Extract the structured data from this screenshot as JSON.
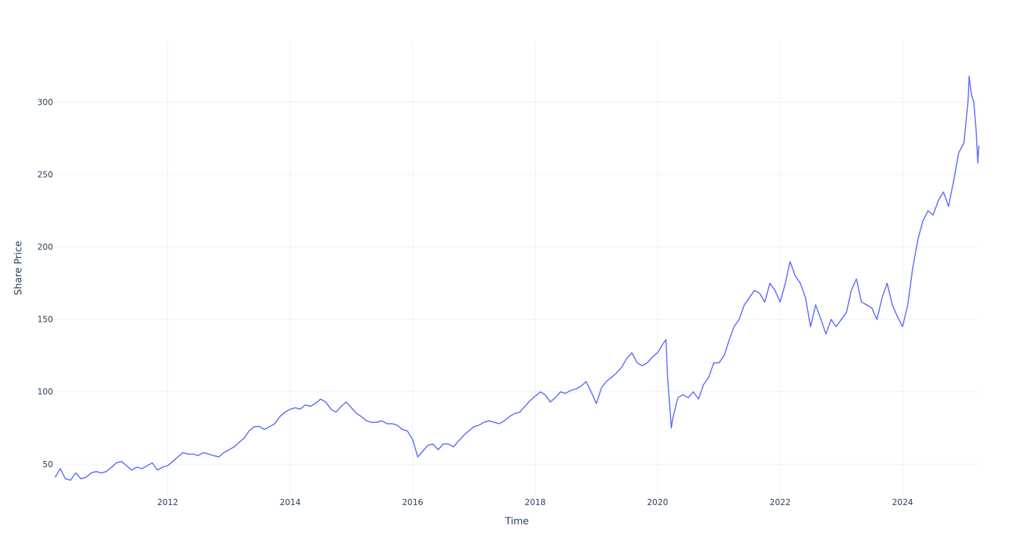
{
  "chart_data": {
    "type": "line",
    "title": "",
    "xlabel": "Time",
    "ylabel": "Share Price",
    "x_range": [
      "2010-03-01",
      "2025-03-31"
    ],
    "ylim": [
      28,
      342
    ],
    "x_ticks": [
      "2012",
      "2014",
      "2016",
      "2018",
      "2020",
      "2022",
      "2024"
    ],
    "y_ticks": [
      50,
      100,
      150,
      200,
      250,
      300
    ],
    "grid": true,
    "legend": "none",
    "colors": {
      "line": "#636efa",
      "grid": "#ebf0f8",
      "text": "#2a3f5f"
    },
    "series": [
      {
        "x": [
          "2010-03-01",
          "2010-04-01",
          "2010-05-01",
          "2010-06-01",
          "2010-07-01",
          "2010-08-01",
          "2010-09-01",
          "2010-10-01",
          "2010-11-01",
          "2010-12-01",
          "2011-01-01",
          "2011-02-01",
          "2011-03-01",
          "2011-04-01",
          "2011-05-01",
          "2011-06-01",
          "2011-07-01",
          "2011-08-01",
          "2011-09-01",
          "2011-10-01",
          "2011-11-01",
          "2011-12-01",
          "2012-01-01",
          "2012-02-01",
          "2012-03-01",
          "2012-04-01",
          "2012-05-01",
          "2012-06-01",
          "2012-07-01",
          "2012-08-01",
          "2012-09-01",
          "2012-10-01",
          "2012-11-01",
          "2012-12-01",
          "2013-01-01",
          "2013-02-01",
          "2013-03-01",
          "2013-04-01",
          "2013-05-01",
          "2013-06-01",
          "2013-07-01",
          "2013-08-01",
          "2013-09-01",
          "2013-10-01",
          "2013-11-01",
          "2013-12-01",
          "2014-01-01",
          "2014-02-01",
          "2014-03-01",
          "2014-04-01",
          "2014-05-01",
          "2014-06-01",
          "2014-07-01",
          "2014-08-01",
          "2014-09-01",
          "2014-10-01",
          "2014-11-01",
          "2014-12-01",
          "2015-01-01",
          "2015-02-01",
          "2015-03-01",
          "2015-04-01",
          "2015-05-01",
          "2015-06-01",
          "2015-07-01",
          "2015-08-01",
          "2015-09-01",
          "2015-10-01",
          "2015-11-01",
          "2015-12-01",
          "2016-01-01",
          "2016-02-01",
          "2016-03-01",
          "2016-04-01",
          "2016-05-01",
          "2016-06-01",
          "2016-07-01",
          "2016-08-01",
          "2016-09-01",
          "2016-10-01",
          "2016-11-01",
          "2016-12-01",
          "2017-01-01",
          "2017-02-01",
          "2017-03-01",
          "2017-04-01",
          "2017-05-01",
          "2017-06-01",
          "2017-07-01",
          "2017-08-01",
          "2017-09-01",
          "2017-10-01",
          "2017-11-01",
          "2017-12-01",
          "2018-01-01",
          "2018-02-01",
          "2018-03-01",
          "2018-04-01",
          "2018-05-01",
          "2018-06-01",
          "2018-07-01",
          "2018-08-01",
          "2018-09-01",
          "2018-10-01",
          "2018-11-01",
          "2018-12-01",
          "2019-01-01",
          "2019-02-01",
          "2019-03-01",
          "2019-04-01",
          "2019-05-01",
          "2019-06-01",
          "2019-07-01",
          "2019-08-01",
          "2019-09-01",
          "2019-10-01",
          "2019-11-01",
          "2019-12-01",
          "2020-01-01",
          "2020-02-01",
          "2020-02-20",
          "2020-03-01",
          "2020-03-23",
          "2020-04-01",
          "2020-05-01",
          "2020-06-01",
          "2020-07-01",
          "2020-08-01",
          "2020-09-01",
          "2020-10-01",
          "2020-11-01",
          "2020-12-01",
          "2021-01-01",
          "2021-02-01",
          "2021-03-01",
          "2021-04-01",
          "2021-05-01",
          "2021-06-01",
          "2021-07-01",
          "2021-08-01",
          "2021-09-01",
          "2021-10-01",
          "2021-11-01",
          "2021-12-01",
          "2022-01-01",
          "2022-02-01",
          "2022-03-01",
          "2022-04-01",
          "2022-05-01",
          "2022-06-01",
          "2022-07-01",
          "2022-08-01",
          "2022-09-01",
          "2022-10-01",
          "2022-11-01",
          "2022-12-01",
          "2023-01-01",
          "2023-02-01",
          "2023-03-01",
          "2023-04-01",
          "2023-05-01",
          "2023-06-01",
          "2023-07-01",
          "2023-08-01",
          "2023-09-01",
          "2023-10-01",
          "2023-11-01",
          "2023-12-01",
          "2024-01-01",
          "2024-02-01",
          "2024-03-01",
          "2024-04-01",
          "2024-05-01",
          "2024-06-01",
          "2024-07-01",
          "2024-08-01",
          "2024-09-01",
          "2024-10-01",
          "2024-11-01",
          "2024-12-01",
          "2025-01-01",
          "2025-01-25",
          "2025-02-01",
          "2025-02-15",
          "2025-03-01",
          "2025-03-15",
          "2025-03-25",
          "2025-03-31"
        ],
        "y": [
          41,
          47,
          40,
          39,
          44,
          40,
          41,
          44,
          45,
          44,
          45,
          48,
          51,
          52,
          49,
          46,
          48,
          47,
          49,
          51,
          46,
          48,
          49,
          52,
          55,
          58,
          57,
          57,
          56,
          58,
          57,
          56,
          55,
          58,
          60,
          62,
          65,
          68,
          73,
          76,
          76,
          74,
          76,
          78,
          83,
          86,
          88,
          89,
          88,
          91,
          90,
          92,
          95,
          93,
          88,
          86,
          90,
          93,
          89,
          85,
          83,
          80,
          79,
          79,
          80,
          78,
          78,
          77,
          74,
          73,
          67,
          55,
          59,
          63,
          64,
          60,
          64,
          64,
          62,
          66,
          70,
          73,
          76,
          77,
          79,
          80,
          79,
          78,
          80,
          83,
          85,
          86,
          90,
          94,
          97,
          100,
          98,
          93,
          96,
          100,
          99,
          101,
          102,
          104,
          107,
          100,
          92,
          103,
          107,
          110,
          113,
          117,
          123,
          127,
          120,
          118,
          120,
          124,
          127,
          133,
          136,
          110,
          75,
          82,
          96,
          98,
          96,
          100,
          95,
          105,
          110,
          120,
          120,
          125,
          135,
          145,
          150,
          160,
          165,
          170,
          168,
          162,
          175,
          170,
          162,
          175,
          190,
          180,
          175,
          165,
          145,
          160,
          150,
          140,
          150,
          145,
          150,
          155,
          170,
          178,
          162,
          160,
          158,
          150,
          165,
          175,
          160,
          152,
          145,
          160,
          185,
          205,
          218,
          225,
          222,
          232,
          238,
          228,
          246,
          265,
          272,
          300,
          318,
          305,
          300,
          280,
          258,
          270
        ]
      }
    ]
  }
}
